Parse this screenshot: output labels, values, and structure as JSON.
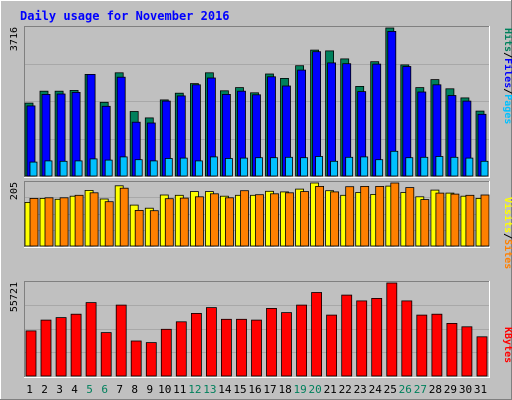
{
  "colors": {
    "frame": "#c0c0c0",
    "plot_bg": "#c0c0c0",
    "title": "#0000ff",
    "hits": "#00805c",
    "files": "#0000ff",
    "pages": "#00c0ff",
    "visits": "#ffff00",
    "sites": "#ff8000",
    "kbytes": "#ff0000",
    "weekend_label": "#00805c",
    "day_label": "#000000",
    "legend_sep": "#000000"
  },
  "chart_data": {
    "type": "bar",
    "title": "Daily usage for November 2016",
    "x": [
      "1",
      "2",
      "3",
      "4",
      "5",
      "6",
      "7",
      "8",
      "9",
      "10",
      "11",
      "12",
      "13",
      "14",
      "15",
      "16",
      "17",
      "18",
      "19",
      "20",
      "21",
      "22",
      "23",
      "24",
      "25",
      "26",
      "27",
      "28",
      "29",
      "30",
      "31"
    ],
    "weekend_days": [
      "5",
      "6",
      "12",
      "13",
      "19",
      "20",
      "26",
      "27"
    ],
    "panels": [
      {
        "axis_max_label": "3716",
        "ylim": [
          0,
          3716
        ],
        "legend": [
          {
            "label": "Pages",
            "color_key": "pages"
          },
          {
            "label": "Files",
            "color_key": "files"
          },
          {
            "label": "Hits",
            "color_key": "hits"
          }
        ],
        "series": [
          {
            "name": "Hits",
            "color_key": "hits",
            "values": [
              1830,
              2130,
              2130,
              2150,
              2550,
              1850,
              2590,
              1620,
              1460,
              1910,
              2080,
              2320,
              2590,
              2140,
              2220,
              2090,
              2560,
              2450,
              2770,
              3160,
              3140,
              2940,
              2250,
              2870,
              3716,
              2790,
              2220,
              2420,
              2190,
              1960,
              1630
            ]
          },
          {
            "name": "Files",
            "color_key": "files",
            "values": [
              1760,
              2050,
              2060,
              2100,
              2550,
              1750,
              2480,
              1350,
              1330,
              1880,
              2010,
              2290,
              2460,
              2050,
              2130,
              2040,
              2490,
              2260,
              2660,
              3120,
              2840,
              2820,
              2120,
              2810,
              3630,
              2750,
              2110,
              2290,
              2020,
              1880,
              1550
            ]
          },
          {
            "name": "Pages",
            "color_key": "pages",
            "values": [
              350,
              380,
              370,
              380,
              430,
              400,
              480,
              410,
              380,
              440,
              450,
              380,
              480,
              440,
              450,
              460,
              460,
              470,
              460,
              490,
              370,
              470,
              480,
              410,
              620,
              460,
              470,
              490,
              470,
              450,
              370
            ]
          }
        ]
      },
      {
        "axis_max_label": "205",
        "ylim": [
          0,
          205
        ],
        "legend": [
          {
            "label": "Sites",
            "color_key": "sites"
          },
          {
            "label": "Visits",
            "color_key": "visits"
          }
        ],
        "series": [
          {
            "name": "Visits",
            "color_key": "visits",
            "values": [
              142,
              155,
              152,
              162,
              181,
              153,
              196,
              133,
              123,
              166,
              165,
              177,
              177,
              162,
              165,
              165,
              178,
              176,
              185,
              205,
              180,
              165,
              174,
              168,
              195,
              174,
              160,
              182,
              172,
              162,
              155
            ]
          },
          {
            "name": "Sites",
            "color_key": "sites",
            "values": [
              155,
              157,
              157,
              165,
              173,
              144,
              188,
              116,
              115,
              154,
              156,
              160,
              170,
              157,
              180,
              167,
              170,
              173,
              177,
              194,
              176,
              193,
              194,
              194,
              205,
              190,
              151,
              172,
              169,
              165,
              166
            ]
          }
        ]
      },
      {
        "axis_max_label": "55721",
        "ylim": [
          0,
          55721
        ],
        "legend": [
          {
            "label": "KBytes",
            "color_key": "kbytes"
          }
        ],
        "series": [
          {
            "name": "KBytes",
            "color_key": "kbytes",
            "values": [
              27000,
              33500,
              35000,
              37000,
              44000,
              26000,
              42500,
              21000,
              20000,
              28000,
              32500,
              37500,
              41000,
              34000,
              34000,
              33500,
              40500,
              38000,
              42500,
              50000,
              36500,
              48500,
              45000,
              46500,
              55721,
              45000,
              36500,
              37000,
              31500,
              29500,
              23500
            ]
          }
        ]
      }
    ]
  }
}
